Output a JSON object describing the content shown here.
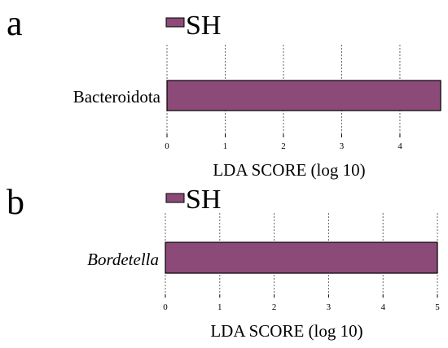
{
  "panels": [
    {
      "panel_label": "a",
      "legend_label": "SH",
      "legend_color": "#8b4a78",
      "grid": true,
      "legend_position": "top-left",
      "chart_data": {
        "type": "bar",
        "orientation": "horizontal",
        "categories": [
          "Bacteroidota"
        ],
        "category_italic": false,
        "series": [
          {
            "name": "SH",
            "values": [
              4.7
            ],
            "color": "#8b4a78"
          }
        ],
        "xlabel": "LDA SCORE (log 10)",
        "xlim": [
          0,
          4.7
        ],
        "xticks": [
          0,
          1,
          2,
          3,
          4
        ]
      }
    },
    {
      "panel_label": "b",
      "legend_label": "SH",
      "legend_color": "#8b4a78",
      "grid": true,
      "legend_position": "top-left",
      "chart_data": {
        "type": "bar",
        "orientation": "horizontal",
        "categories": [
          "Bordetella"
        ],
        "category_italic": true,
        "series": [
          {
            "name": "SH",
            "values": [
              5.0
            ],
            "color": "#8b4a78"
          }
        ],
        "xlabel": "LDA SCORE (log 10)",
        "xlim": [
          0,
          5.0
        ],
        "xticks": [
          0,
          1,
          2,
          3,
          4,
          5
        ]
      }
    }
  ]
}
